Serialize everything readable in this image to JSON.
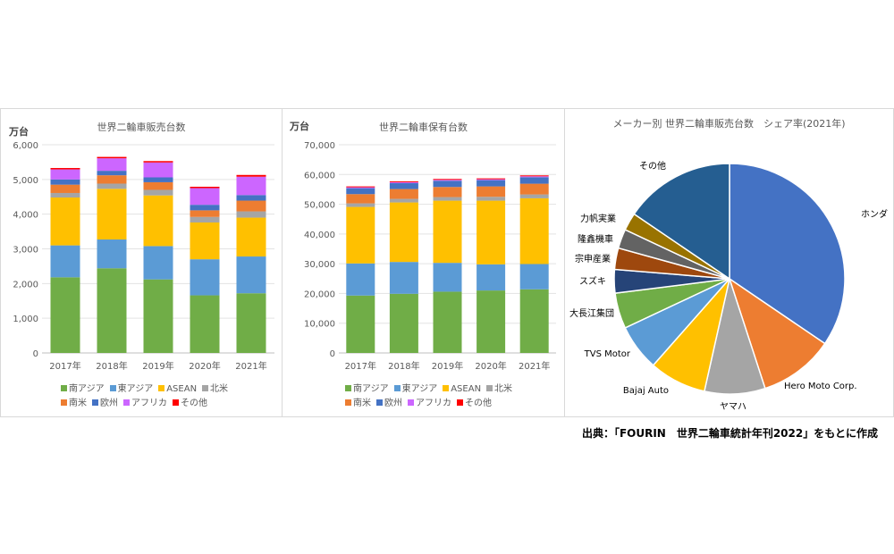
{
  "colors": {
    "south_asia": "#70ad47",
    "east_asia": "#5b9bd5",
    "asean": "#ffc000",
    "north_america": "#a5a5a5",
    "south_america": "#ed7d31",
    "europe": "#4472c4",
    "africa": "#cc66ff",
    "other": "#ff0000"
  },
  "legend": [
    {
      "label": "南アジア",
      "color": "#70ad47"
    },
    {
      "label": "東アジア",
      "color": "#5b9bd5"
    },
    {
      "label": "ASEAN",
      "color": "#ffc000"
    },
    {
      "label": "北米",
      "color": "#a5a5a5"
    },
    {
      "label": "南米",
      "color": "#ed7d31"
    },
    {
      "label": "欧州",
      "color": "#4472c4"
    },
    {
      "label": "アフリカ",
      "color": "#cc66ff"
    },
    {
      "label": "その他",
      "color": "#ff0000"
    }
  ],
  "source": "出典：「FOURIN　世界二輪車統計年刊2022」をもとに作成",
  "chart_data": [
    {
      "type": "bar",
      "stacked": true,
      "title": "世界二輪車販売台数",
      "unit": "万台",
      "categories": [
        "2017年",
        "2018年",
        "2019年",
        "2020年",
        "2021年"
      ],
      "ylim": [
        0,
        6000
      ],
      "yticks": [
        0,
        1000,
        2000,
        3000,
        4000,
        5000,
        6000
      ],
      "ytick_labels": [
        "0",
        "1,000",
        "2,000",
        "3,000",
        "4,000",
        "5,000",
        "6,000"
      ],
      "grid": true,
      "legend_position": "bottom",
      "series": [
        {
          "name": "南アジア",
          "values": [
            2180,
            2440,
            2120,
            1660,
            1720
          ]
        },
        {
          "name": "東アジア",
          "values": [
            920,
            830,
            960,
            1040,
            1060
          ]
        },
        {
          "name": "ASEAN",
          "values": [
            1380,
            1460,
            1460,
            1060,
            1120
          ]
        },
        {
          "name": "北米",
          "values": [
            130,
            150,
            160,
            160,
            180
          ]
        },
        {
          "name": "南米",
          "values": [
            240,
            240,
            220,
            190,
            310
          ]
        },
        {
          "name": "欧州",
          "values": [
            150,
            130,
            140,
            160,
            160
          ]
        },
        {
          "name": "アフリカ",
          "values": [
            290,
            360,
            430,
            480,
            530
          ]
        },
        {
          "name": "その他",
          "values": [
            40,
            40,
            40,
            40,
            50
          ]
        }
      ]
    },
    {
      "type": "bar",
      "stacked": true,
      "title": "世界二輪車保有台数",
      "unit": "万台",
      "categories": [
        "2017年",
        "2018年",
        "2019年",
        "2020年",
        "2021年"
      ],
      "ylim": [
        0,
        70000
      ],
      "yticks": [
        0,
        10000,
        20000,
        30000,
        40000,
        50000,
        60000,
        70000
      ],
      "ytick_labels": [
        "0",
        "10,000",
        "20,000",
        "30,000",
        "40,000",
        "50,000",
        "60,000",
        "70,000"
      ],
      "grid": true,
      "legend_position": "bottom",
      "series": [
        {
          "name": "南アジア",
          "values": [
            19300,
            19900,
            20600,
            21000,
            21400
          ]
        },
        {
          "name": "東アジア",
          "values": [
            10800,
            10700,
            9700,
            8800,
            8500
          ]
        },
        {
          "name": "ASEAN",
          "values": [
            19000,
            20000,
            20900,
            21400,
            22100
          ]
        },
        {
          "name": "北米",
          "values": [
            1200,
            1200,
            1200,
            1300,
            1300
          ]
        },
        {
          "name": "南米",
          "values": [
            3100,
            3300,
            3400,
            3500,
            3600
          ]
        },
        {
          "name": "欧州",
          "values": [
            2000,
            2000,
            2100,
            2100,
            2200
          ]
        },
        {
          "name": "アフリカ",
          "values": [
            300,
            300,
            300,
            300,
            300
          ]
        },
        {
          "name": "その他",
          "values": [
            300,
            300,
            300,
            300,
            300
          ]
        }
      ]
    },
    {
      "type": "pie",
      "title": "メーカー別 世界二輪車販売台数　シェア率(2021年)",
      "slices": [
        {
          "label": "ホンダ",
          "value": 34.5,
          "color": "#4472c4"
        },
        {
          "label": "Hero Moto Corp.",
          "value": 10.5,
          "color": "#ed7d31"
        },
        {
          "label": "ヤマハ",
          "value": 8.5,
          "color": "#a5a5a5"
        },
        {
          "label": "Bajaj Auto",
          "value": 8.0,
          "color": "#ffc000"
        },
        {
          "label": "TVS Motor",
          "value": 6.5,
          "color": "#5b9bd5"
        },
        {
          "label": "大長江集団",
          "value": 5.0,
          "color": "#70ad47"
        },
        {
          "label": "スズキ",
          "value": 3.3,
          "color": "#264478"
        },
        {
          "label": "宗申産業",
          "value": 3.0,
          "color": "#9e480e"
        },
        {
          "label": "隆鑫機車",
          "value": 2.7,
          "color": "#636363"
        },
        {
          "label": "力帆実業",
          "value": 2.5,
          "color": "#997300"
        },
        {
          "label": "その他",
          "value": 15.5,
          "color": "#255e91"
        }
      ]
    }
  ]
}
